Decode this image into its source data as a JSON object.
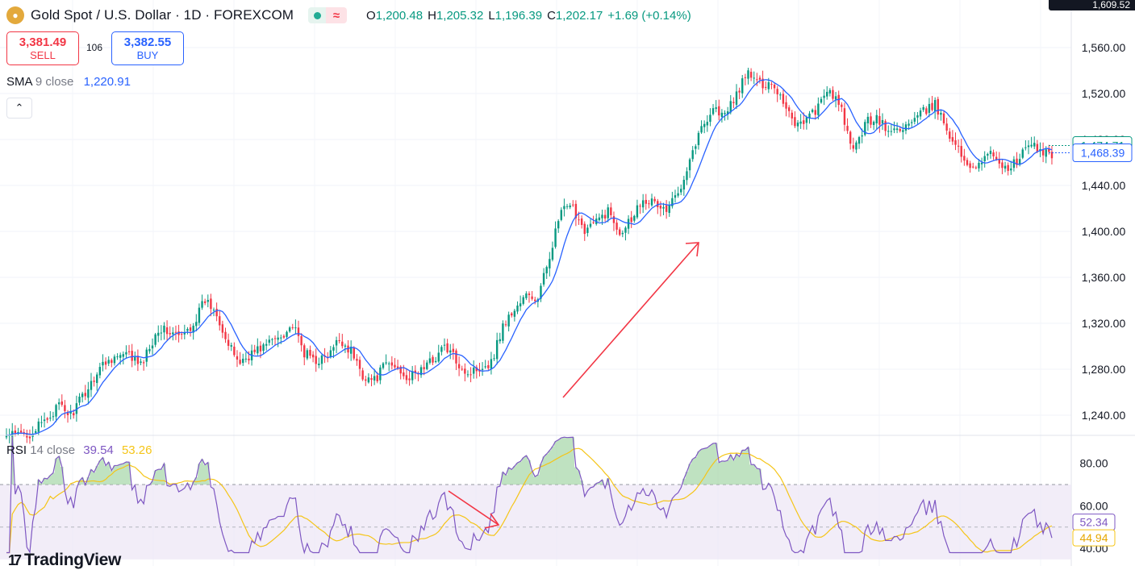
{
  "header": {
    "symbol_icon": "gold-coins-icon",
    "title": "Gold Spot / U.S. Dollar · 1D · FOREXCOM",
    "ohlc": {
      "o_label": "O",
      "o": "1,200.48",
      "h_label": "H",
      "h": "1,205.32",
      "l_label": "L",
      "l": "1,196.39",
      "c_label": "C",
      "c": "1,202.17",
      "change": "+1.69 (+0.14%)"
    },
    "corner_value": "1,609.52"
  },
  "trade": {
    "sell_price": "3,381.49",
    "sell_label": "SELL",
    "spread": "106",
    "buy_price": "3,382.55",
    "buy_label": "BUY"
  },
  "sma_legend": {
    "name": "SMA",
    "params": "9 close",
    "value": "1,220.91"
  },
  "rsi_legend": {
    "name": "RSI",
    "params": "14 close",
    "value": "39.54",
    "ma_value": "53.26"
  },
  "logo": {
    "mark": "17",
    "text": "TradingView"
  },
  "colors": {
    "up": "#089981",
    "down": "#f23645",
    "sma": "#2962ff",
    "rsi": "#7e57c2",
    "rsi_ma": "#f5c518",
    "band": "#ede7f6",
    "arrow": "#f23645"
  },
  "chart_data": [
    {
      "type": "candlestick",
      "title": "Gold Spot / U.S. Dollar · 1D · FOREXCOM",
      "ylim": [
        1216,
        1580
      ],
      "yticks": [
        1240,
        1280,
        1320,
        1360,
        1400,
        1440,
        1480,
        1520,
        1560
      ],
      "ytick_labels": [
        "1,240.00",
        "1,280.00",
        "1,320.00",
        "1,360.00",
        "1,400.00",
        "1,440.00",
        "1,480.00",
        "1,520.00",
        "1,560.00"
      ],
      "price_tags": [
        {
          "label": "1,474.71",
          "value": 1474.71
        },
        {
          "label": "1,468.39",
          "value": 1468.39
        }
      ],
      "series": [
        {
          "name": "SMA 9 close",
          "kind": "line"
        }
      ],
      "close_anchors": [
        [
          0,
          1222
        ],
        [
          8,
          1224
        ],
        [
          12,
          1232
        ],
        [
          18,
          1248
        ],
        [
          22,
          1240
        ],
        [
          28,
          1264
        ],
        [
          32,
          1282
        ],
        [
          36,
          1290
        ],
        [
          42,
          1292
        ],
        [
          46,
          1283
        ],
        [
          52,
          1316
        ],
        [
          56,
          1312
        ],
        [
          60,
          1308
        ],
        [
          64,
          1320
        ],
        [
          68,
          1340
        ],
        [
          72,
          1330
        ],
        [
          76,
          1300
        ],
        [
          80,
          1286
        ],
        [
          84,
          1294
        ],
        [
          88,
          1300
        ],
        [
          94,
          1310
        ],
        [
          98,
          1318
        ],
        [
          102,
          1294
        ],
        [
          106,
          1288
        ],
        [
          110,
          1290
        ],
        [
          114,
          1306
        ],
        [
          118,
          1296
        ],
        [
          122,
          1275
        ],
        [
          126,
          1270
        ],
        [
          130,
          1285
        ],
        [
          134,
          1281
        ],
        [
          138,
          1272
        ],
        [
          142,
          1280
        ],
        [
          146,
          1288
        ],
        [
          150,
          1300
        ],
        [
          154,
          1288
        ],
        [
          158,
          1276
        ],
        [
          162,
          1282
        ],
        [
          166,
          1286
        ],
        [
          170,
          1318
        ],
        [
          174,
          1332
        ],
        [
          178,
          1344
        ],
        [
          182,
          1340
        ],
        [
          186,
          1380
        ],
        [
          190,
          1418
        ],
        [
          194,
          1420
        ],
        [
          198,
          1402
        ],
        [
          202,
          1408
        ],
        [
          206,
          1418
        ],
        [
          210,
          1400
        ],
        [
          214,
          1412
        ],
        [
          218,
          1430
        ],
        [
          222,
          1424
        ],
        [
          226,
          1418
        ],
        [
          230,
          1434
        ],
        [
          234,
          1464
        ],
        [
          238,
          1490
        ],
        [
          242,
          1508
        ],
        [
          246,
          1500
        ],
        [
          250,
          1520
        ],
        [
          254,
          1538
        ],
        [
          258,
          1528
        ],
        [
          262,
          1530
        ],
        [
          266,
          1514
        ],
        [
          270,
          1494
        ],
        [
          274,
          1498
        ],
        [
          278,
          1508
        ],
        [
          282,
          1524
        ],
        [
          286,
          1504
        ],
        [
          290,
          1468
        ],
        [
          294,
          1494
        ],
        [
          298,
          1500
        ],
        [
          302,
          1486
        ],
        [
          306,
          1490
        ],
        [
          310,
          1494
        ],
        [
          314,
          1504
        ],
        [
          318,
          1510
        ],
        [
          322,
          1490
        ],
        [
          326,
          1470
        ],
        [
          330,
          1456
        ],
        [
          334,
          1462
        ],
        [
          338,
          1468
        ],
        [
          342,
          1454
        ],
        [
          346,
          1460
        ],
        [
          350,
          1476
        ],
        [
          354,
          1470
        ],
        [
          358,
          1468
        ]
      ]
    },
    {
      "type": "line",
      "title": "RSI 14 close",
      "ylim": [
        36,
        98
      ],
      "yticks": [
        40,
        60,
        80
      ],
      "ytick_labels": [
        "40.00",
        "60.00",
        "80.00"
      ],
      "band": [
        50,
        70
      ],
      "last_labels": [
        {
          "label": "52.34",
          "value": 52.34
        },
        {
          "label": "44.94",
          "value": 44.94
        }
      ],
      "series": [
        {
          "name": "RSI",
          "kind": "line"
        },
        {
          "name": "RSI-based MA",
          "kind": "line"
        }
      ]
    }
  ]
}
